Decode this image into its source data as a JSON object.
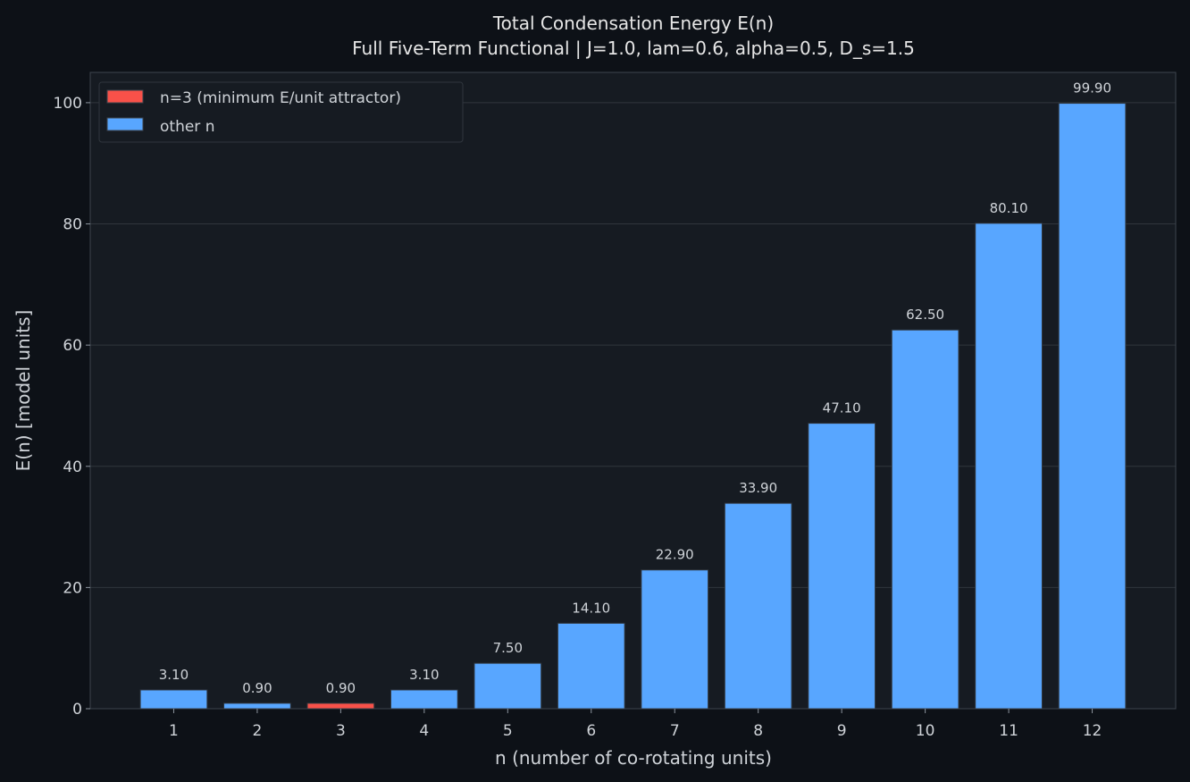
{
  "chart_data": {
    "type": "bar",
    "title": "Total Condensation Energy E(n)",
    "subtitle": "Full Five-Term Functional  |  J=1.0, lam=0.6, alpha=0.5, D_s=1.5",
    "xlabel": "n  (number of co-rotating units)",
    "ylabel": "E(n)  [model units]",
    "categories": [
      "1",
      "2",
      "3",
      "4",
      "5",
      "6",
      "7",
      "8",
      "9",
      "10",
      "11",
      "12"
    ],
    "values": [
      3.1,
      0.9,
      0.9,
      3.1,
      7.5,
      14.1,
      22.9,
      33.9,
      47.1,
      62.5,
      80.1,
      99.9
    ],
    "value_labels": [
      "3.10",
      "0.90",
      "0.90",
      "3.10",
      "7.50",
      "14.10",
      "22.90",
      "33.90",
      "47.10",
      "62.50",
      "80.10",
      "99.90"
    ],
    "highlight_index": 2,
    "ylim": [
      0,
      105
    ],
    "yticks": [
      0,
      20,
      40,
      60,
      80,
      100
    ],
    "grid": "y",
    "legend_position": "top-left",
    "legend": [
      {
        "label": "n=3 (minimum E/unit attractor)",
        "color": "#f85149"
      },
      {
        "label": "other n",
        "color": "#58a6ff"
      }
    ],
    "colors": {
      "background": "#0d1117",
      "plot_background": "#161b22",
      "bar": "#58a6ff",
      "highlight": "#f85149",
      "grid": "#30363d",
      "axis": "#3d444d"
    }
  }
}
